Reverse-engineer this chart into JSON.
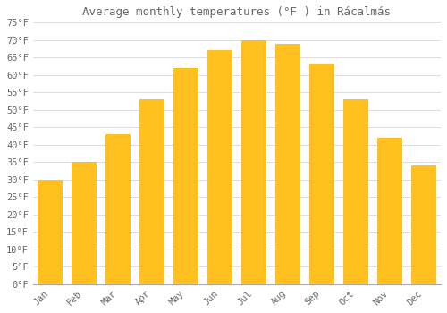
{
  "title": "Average monthly temperatures (°F ) in Rácalmás",
  "months": [
    "Jan",
    "Feb",
    "Mar",
    "Apr",
    "May",
    "Jun",
    "Jul",
    "Aug",
    "Sep",
    "Oct",
    "Nov",
    "Dec"
  ],
  "values": [
    30,
    35,
    43,
    53,
    62,
    67,
    70,
    69,
    63,
    53,
    42,
    34
  ],
  "bar_color_top": "#FFC020",
  "bar_color_bottom": "#FFB000",
  "bar_edge_color": "none",
  "background_color": "#FFFFFF",
  "grid_color": "#DDDDDD",
  "text_color": "#666666",
  "ylim": [
    0,
    75
  ],
  "yticks": [
    0,
    5,
    10,
    15,
    20,
    25,
    30,
    35,
    40,
    45,
    50,
    55,
    60,
    65,
    70,
    75
  ],
  "ytick_labels": [
    "0°F",
    "5°F",
    "10°F",
    "15°F",
    "20°F",
    "25°F",
    "30°F",
    "35°F",
    "40°F",
    "45°F",
    "50°F",
    "55°F",
    "60°F",
    "65°F",
    "70°F",
    "75°F"
  ],
  "title_fontsize": 9,
  "tick_fontsize": 7.5,
  "bar_width": 0.75
}
